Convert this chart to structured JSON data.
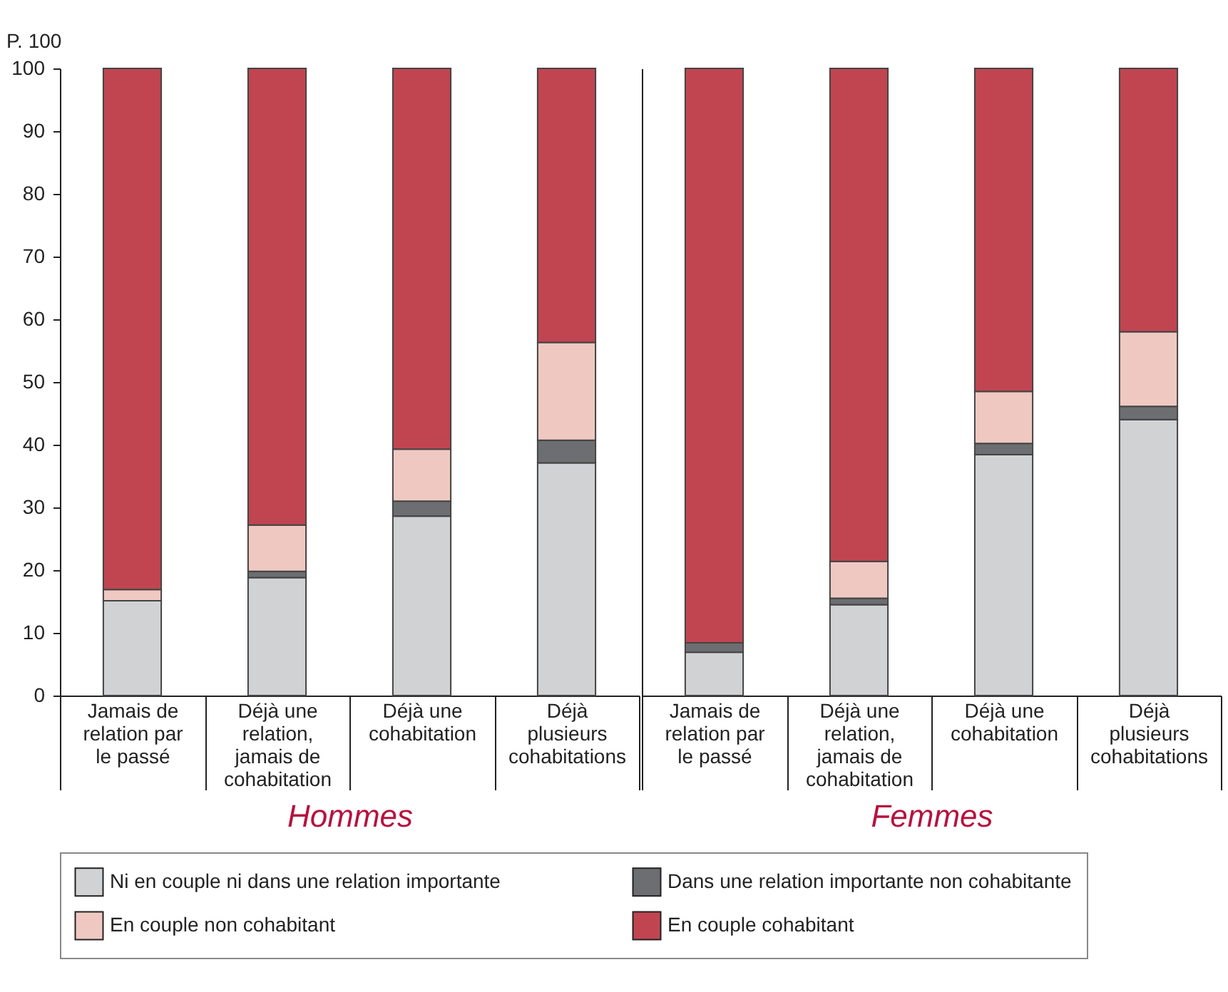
{
  "chart_data": [
    {
      "type": "bar",
      "stacked": true,
      "xlabel": "Hommes",
      "ylabel": "P. 100",
      "categories": [
        "Jamais de relation par le passé",
        "Déjà une relation, jamais de cohabitation",
        "Déjà une cohabitation",
        "Déjà plusieurs cohabitations"
      ],
      "ylim": [
        0,
        100
      ],
      "yticks": [
        0,
        10,
        20,
        30,
        40,
        50,
        60,
        70,
        80,
        90,
        100
      ],
      "legend": "bottom",
      "series": [
        {
          "name": "Ni en couple ni dans une relation importante",
          "color": "#d1d2d4",
          "values": [
            15.1,
            18.8,
            28.6,
            37.1
          ]
        },
        {
          "name": "Dans une relation importante non cohabitante",
          "color": "#6d6e71",
          "values": [
            0,
            1.0,
            2.4,
            3.6
          ]
        },
        {
          "name": "En couple non cohabitant",
          "color": "#efc9c1",
          "values": [
            1.8,
            7.4,
            8.3,
            15.6
          ]
        },
        {
          "name": "En couple cohabitant",
          "color": "#c04551",
          "values": [
            83.1,
            72.8,
            60.7,
            43.7
          ]
        }
      ]
    },
    {
      "type": "bar",
      "stacked": true,
      "xlabel": "Femmes",
      "categories": [
        "Jamais de relation par le passé",
        "Déjà une relation, jamais de cohabitation",
        "Déjà une cohabitation",
        "Déjà plusieurs cohabitations"
      ],
      "ylim": [
        0,
        100
      ],
      "yticks": [
        0,
        10,
        20,
        30,
        40,
        50,
        60,
        70,
        80,
        90,
        100
      ],
      "tick_labels": "x",
      "legend": "bottom",
      "series": [
        {
          "name": "Ni en couple ni dans une relation importante",
          "color": "#d1d2d4",
          "values": [
            6.9,
            14.5,
            38.4,
            44.0
          ]
        },
        {
          "name": "Dans une relation importante non cohabitante",
          "color": "#6d6e71",
          "values": [
            1.5,
            1.0,
            1.8,
            2.1
          ]
        },
        {
          "name": "En couple non cohabitant",
          "color": "#efc9c1",
          "values": [
            0,
            5.9,
            8.3,
            11.9
          ]
        },
        {
          "name": "En couple cohabitant",
          "color": "#c04551",
          "values": [
            91.6,
            78.6,
            51.5,
            42.0
          ]
        }
      ]
    }
  ]
}
